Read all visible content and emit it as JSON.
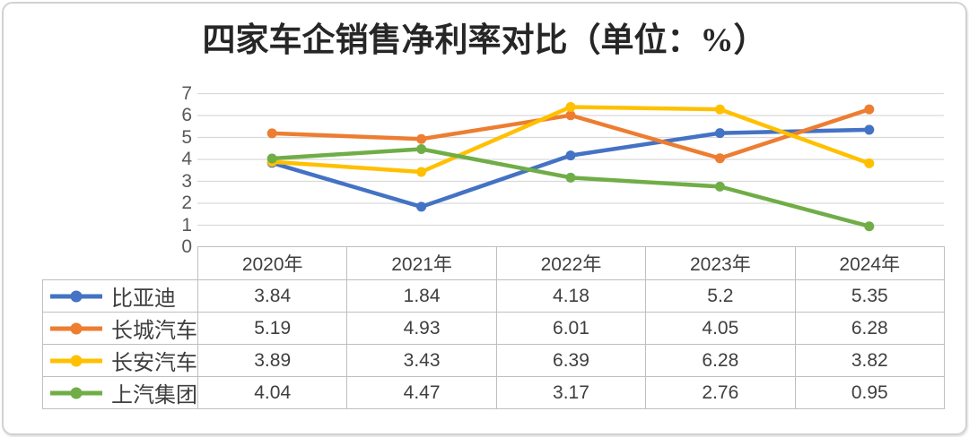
{
  "title": "四家车企销售净利率对比（单位：%）",
  "theme": {
    "grid": "#d9d9d9",
    "table_border": "#bfbfbf",
    "axis_text": "#595959",
    "text": "#3f3f3f",
    "title_color": "#262626",
    "frame_border": "#d2d2d2"
  },
  "chart_data": {
    "type": "line",
    "title": "四家车企销售净利率对比（单位：%）",
    "categories": [
      "2020年",
      "2021年",
      "2022年",
      "2023年",
      "2024年"
    ],
    "series": [
      {
        "name": "比亚迪",
        "color": "#4472C4",
        "values": [
          3.84,
          1.84,
          4.18,
          5.2,
          5.35
        ]
      },
      {
        "name": "长城汽车",
        "color": "#ED7D31",
        "values": [
          5.19,
          4.93,
          6.01,
          4.05,
          6.28
        ]
      },
      {
        "name": "长安汽车",
        "color": "#FFC000",
        "values": [
          3.89,
          3.43,
          6.39,
          6.28,
          3.82
        ]
      },
      {
        "name": "上汽集团",
        "color": "#70AD47",
        "values": [
          4.04,
          4.47,
          3.17,
          2.76,
          0.95
        ]
      }
    ],
    "xlabel": "",
    "ylabel": "",
    "ylim": [
      0,
      7
    ],
    "yticks": [
      0,
      1,
      2,
      3,
      4,
      5,
      6,
      7
    ],
    "grid": true,
    "marker": "circle",
    "legend_position": "table-left"
  }
}
